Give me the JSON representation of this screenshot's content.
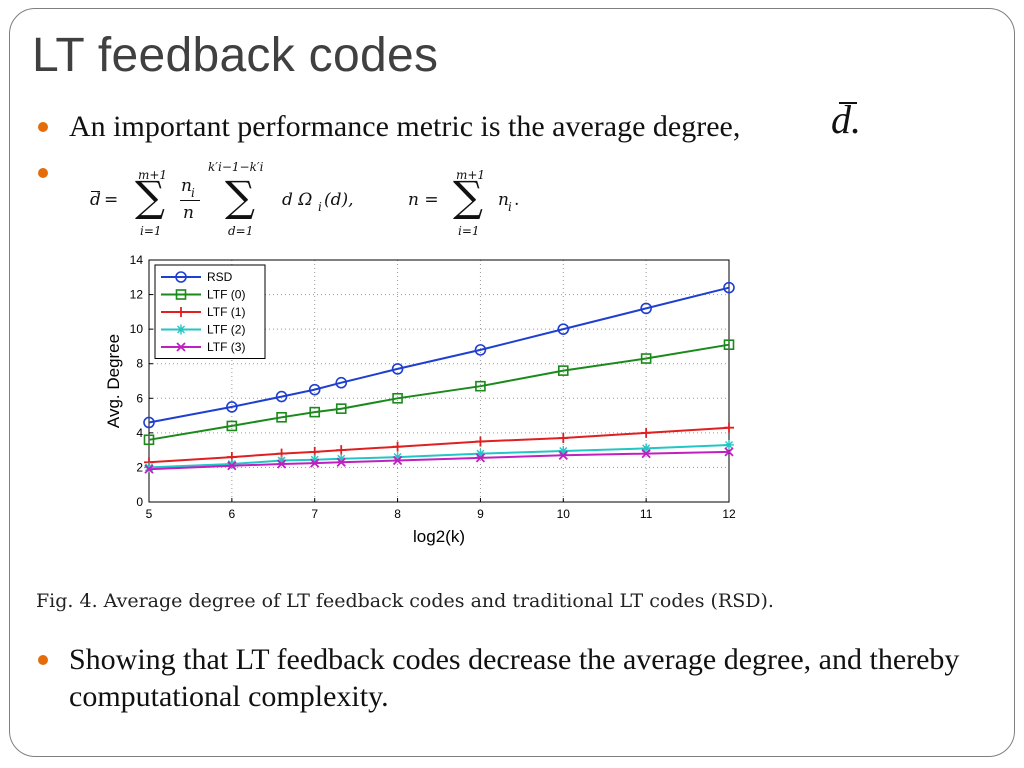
{
  "slide": {
    "title": "LT feedback codes",
    "bullets": [
      "An important performance metric is the average degree,",
      "",
      "Showing  that LT feedback codes decrease the average degree, and thereby computational complexity."
    ],
    "inline_symbol": "d.",
    "formula": {
      "lhs": "d",
      "sum1_top": "m+1",
      "sum1_bottom": "i=1",
      "frac_num": "n",
      "frac_num_sub": "i",
      "frac_den": "n",
      "sum2_top": "k′i−1−k′i",
      "sum2_bottom": "d=1",
      "term": "d Ω",
      "term_sub": "i",
      "term_arg": "(d),",
      "rhs_lhs": "n =",
      "sum3_top": "m+1",
      "sum3_bottom": "i=1",
      "rhs_term": "n",
      "rhs_term_sub": "i",
      "rhs_end": "."
    },
    "caption": "Fig. 4.   Average degree of LT feedback codes and traditional LT codes (RSD)."
  },
  "colors": {
    "bullet": "#e46c0a",
    "RSD": "#1f3fd0",
    "LTF0": "#1a8a1a",
    "LTF1": "#e02020",
    "LTF2": "#22c6c6",
    "LTF3": "#c020c0"
  },
  "chart_data": {
    "type": "line",
    "xlabel": "log2(k)",
    "ylabel": "Avg. Degree",
    "xlim": [
      5,
      12
    ],
    "ylim": [
      0,
      14
    ],
    "xticks": [
      5,
      6,
      7,
      8,
      9,
      10,
      11,
      12
    ],
    "yticks": [
      0,
      2,
      4,
      6,
      8,
      10,
      12,
      14
    ],
    "grid": true,
    "legend": "top-left",
    "series": [
      {
        "name": "RSD",
        "marker": "circle",
        "x": [
          5,
          6,
          6.6,
          7,
          7.32,
          8,
          9,
          10,
          11,
          12
        ],
        "y": [
          4.6,
          5.5,
          6.1,
          6.5,
          6.9,
          7.7,
          8.8,
          10.0,
          11.2,
          12.4
        ]
      },
      {
        "name": "LTF (0)",
        "marker": "square",
        "x": [
          5,
          6,
          6.6,
          7,
          7.32,
          8,
          9,
          10,
          11,
          12
        ],
        "y": [
          3.6,
          4.4,
          4.9,
          5.2,
          5.4,
          6.0,
          6.7,
          7.6,
          8.3,
          9.1
        ]
      },
      {
        "name": "LTF (1)",
        "marker": "plus",
        "x": [
          5,
          6,
          6.6,
          7,
          7.32,
          8,
          9,
          10,
          11,
          12
        ],
        "y": [
          2.3,
          2.6,
          2.8,
          2.9,
          3.0,
          3.2,
          3.5,
          3.7,
          4.0,
          4.3
        ]
      },
      {
        "name": "LTF (2)",
        "marker": "star",
        "x": [
          5,
          6,
          6.6,
          7,
          7.32,
          8,
          9,
          10,
          11,
          12
        ],
        "y": [
          2.0,
          2.2,
          2.4,
          2.45,
          2.5,
          2.6,
          2.8,
          2.95,
          3.1,
          3.3
        ]
      },
      {
        "name": "LTF (3)",
        "marker": "x",
        "x": [
          5,
          6,
          6.6,
          7,
          7.32,
          8,
          9,
          10,
          11,
          12
        ],
        "y": [
          1.9,
          2.1,
          2.2,
          2.25,
          2.3,
          2.4,
          2.55,
          2.7,
          2.8,
          2.9
        ]
      }
    ]
  }
}
